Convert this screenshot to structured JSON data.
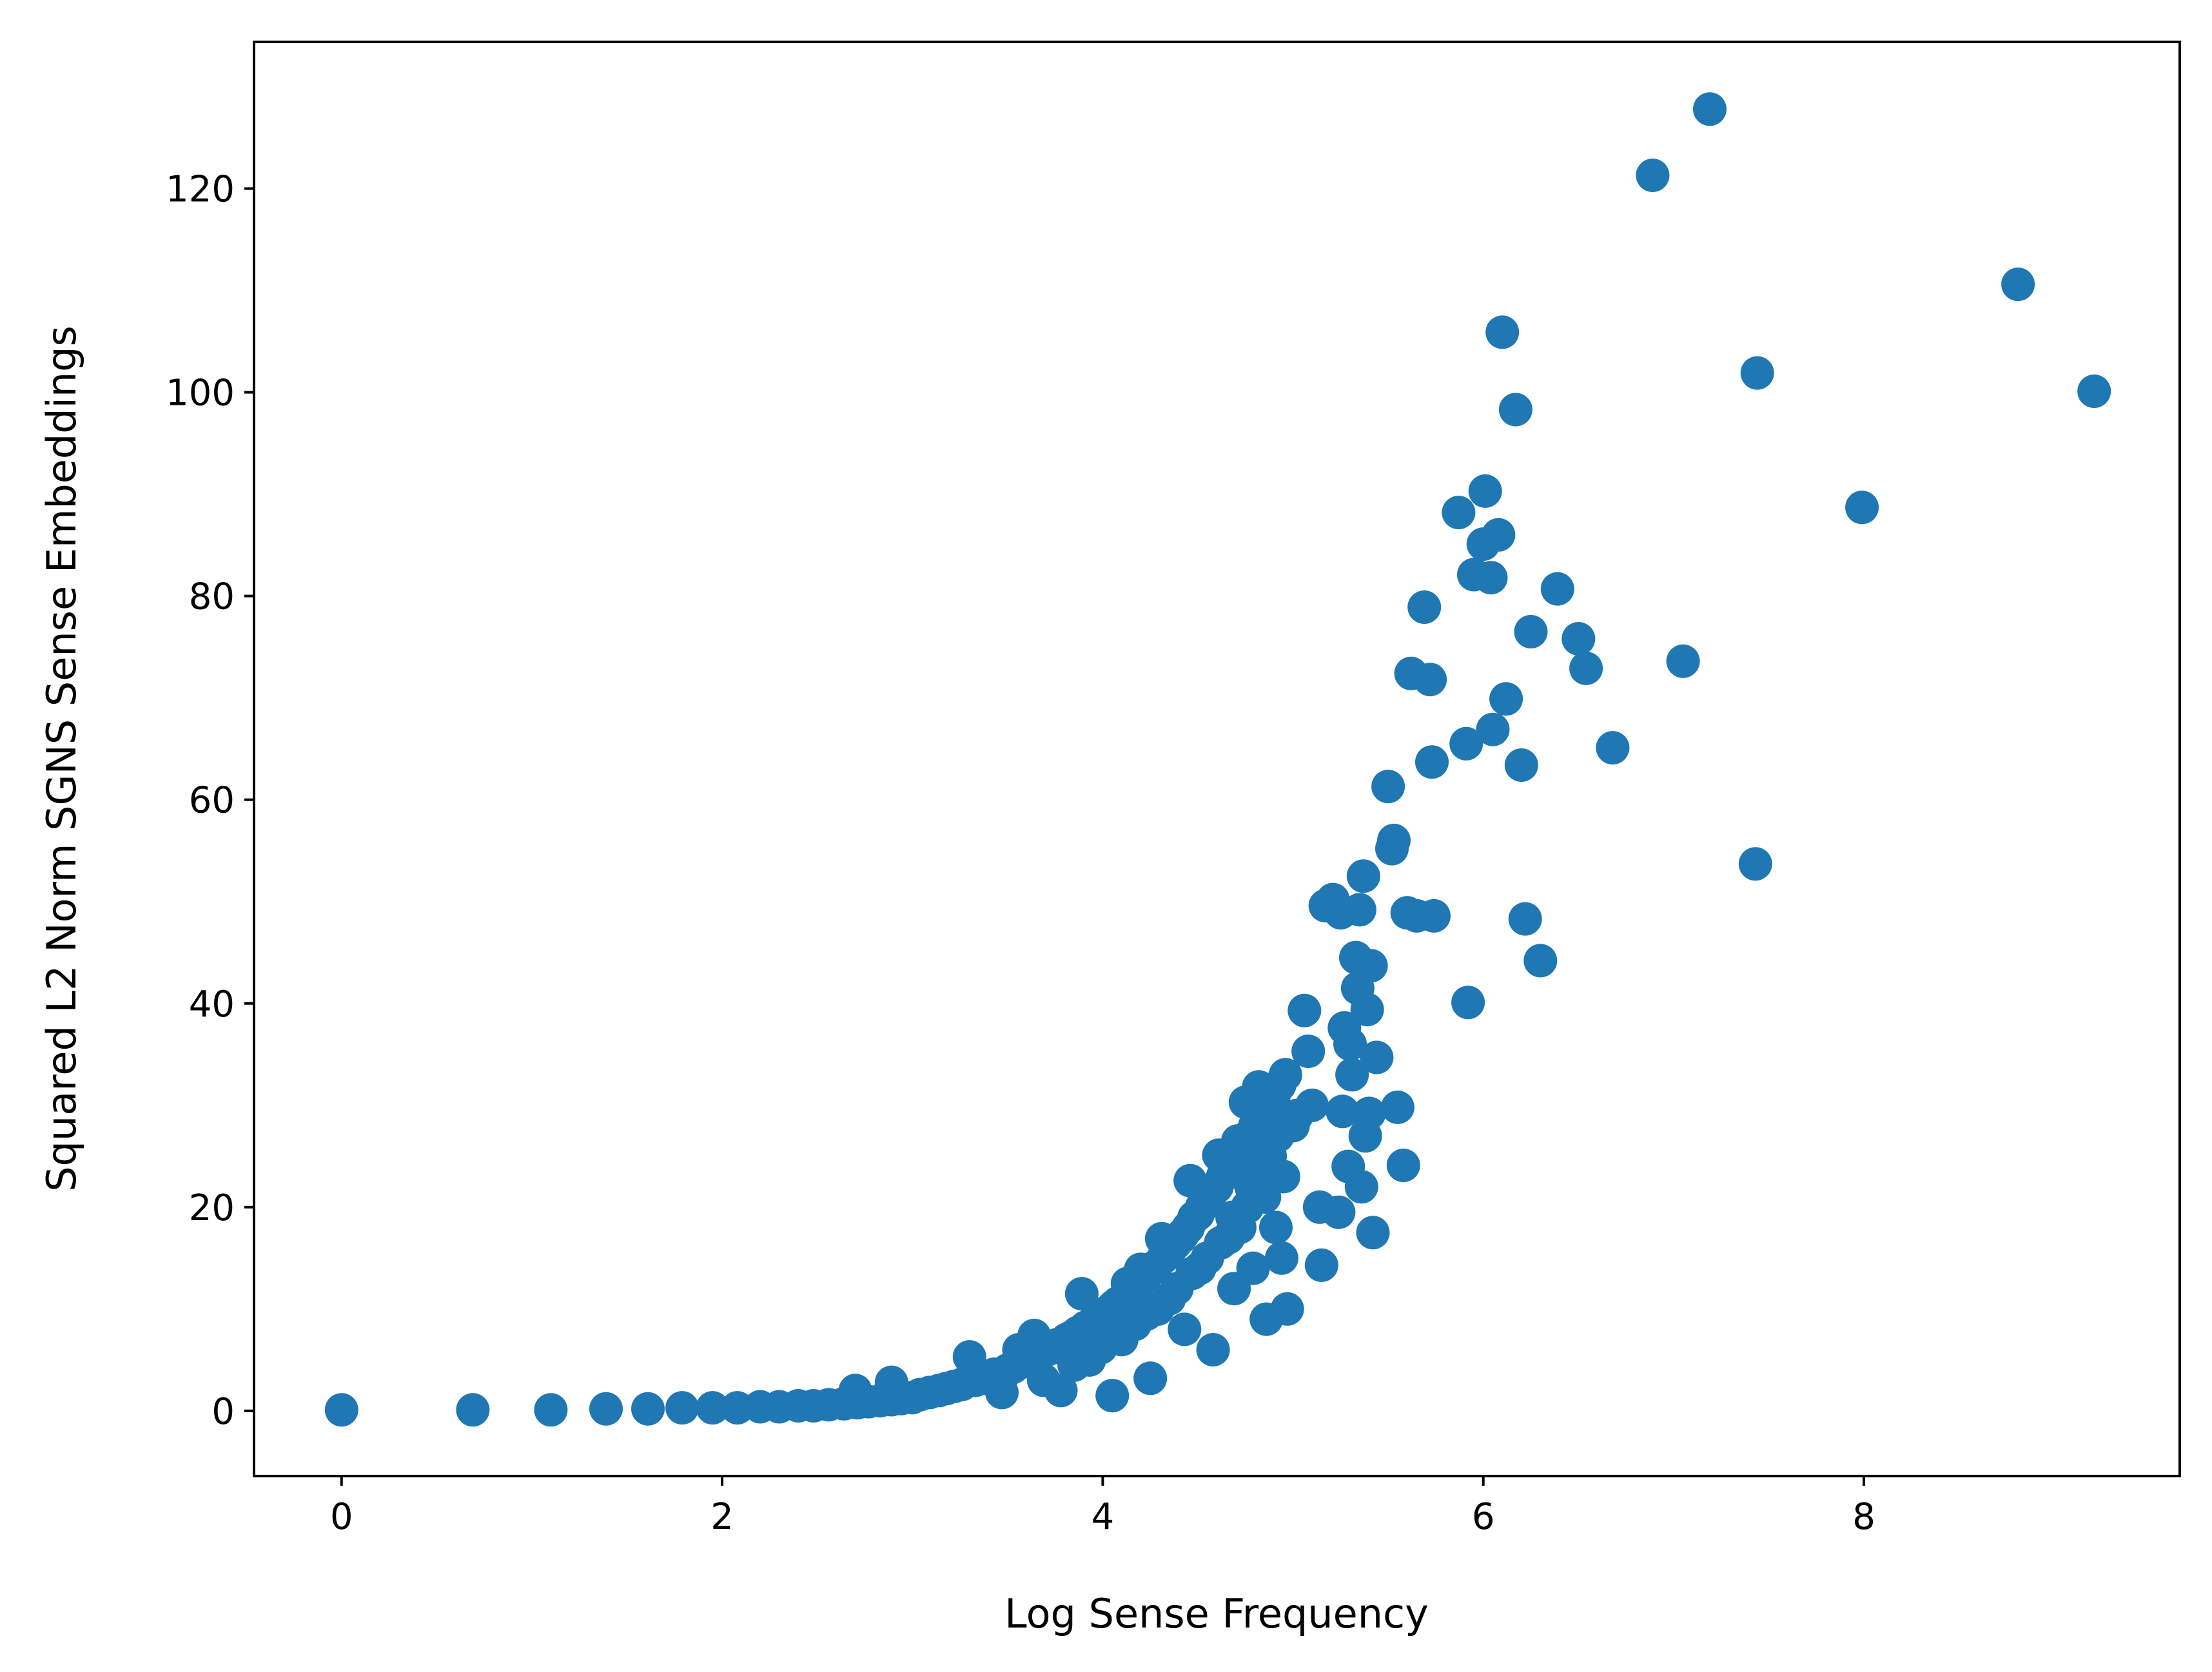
{
  "chart_data": {
    "type": "scatter",
    "title": "",
    "xlabel": "Log Sense Frequency",
    "ylabel": "Squared L2 Norm SGNS Sense Embeddings",
    "xlim": [
      -0.46,
      9.66
    ],
    "ylim": [
      -6.4,
      134.4
    ],
    "x_ticks": [
      0,
      2,
      4,
      6,
      8
    ],
    "y_ticks": [
      0,
      20,
      40,
      60,
      80,
      100,
      120
    ],
    "grid": false,
    "legend": "none",
    "marker_color": "#1f77b4",
    "series": [
      {
        "points": [
          [
            0.0,
            0.1
          ],
          [
            0.69,
            0.1
          ],
          [
            1.1,
            0.1
          ],
          [
            1.39,
            0.2
          ],
          [
            1.61,
            0.2
          ],
          [
            1.79,
            0.3
          ],
          [
            1.95,
            0.3
          ],
          [
            2.08,
            0.3
          ],
          [
            2.2,
            0.4
          ],
          [
            2.3,
            0.4
          ],
          [
            2.4,
            0.5
          ],
          [
            2.48,
            0.5
          ],
          [
            2.56,
            0.6
          ],
          [
            2.64,
            0.7
          ],
          [
            2.71,
            0.8
          ],
          [
            2.77,
            0.9
          ],
          [
            2.83,
            1.0
          ],
          [
            2.89,
            1.1
          ],
          [
            2.94,
            1.2
          ],
          [
            3.0,
            1.3
          ],
          [
            2.7,
            2.0
          ],
          [
            2.89,
            2.8
          ],
          [
            3.04,
            1.6
          ],
          [
            3.09,
            1.8
          ],
          [
            3.14,
            2.0
          ],
          [
            3.18,
            2.2
          ],
          [
            3.22,
            2.4
          ],
          [
            3.26,
            2.6
          ],
          [
            3.3,
            5.3
          ],
          [
            3.33,
            3.0
          ],
          [
            3.37,
            3.2
          ],
          [
            3.4,
            3.4
          ],
          [
            3.43,
            3.6
          ],
          [
            3.47,
            1.8
          ],
          [
            3.5,
            4.0
          ],
          [
            3.53,
            4.3
          ],
          [
            3.56,
            6.0
          ],
          [
            3.58,
            4.8
          ],
          [
            3.61,
            5.0
          ],
          [
            3.64,
            7.4
          ],
          [
            3.66,
            5.5
          ],
          [
            3.69,
            3.0
          ],
          [
            3.71,
            6.0
          ],
          [
            3.74,
            6.2
          ],
          [
            3.76,
            6.5
          ],
          [
            3.78,
            2.0
          ],
          [
            3.81,
            7.0
          ],
          [
            3.83,
            7.2
          ],
          [
            3.85,
            4.5
          ],
          [
            3.87,
            7.7
          ],
          [
            3.89,
            11.5
          ],
          [
            3.91,
            8.2
          ],
          [
            3.93,
            5.0
          ],
          [
            3.95,
            8.7
          ],
          [
            3.97,
            9.0
          ],
          [
            3.99,
            6.2
          ],
          [
            4.01,
            9.5
          ],
          [
            4.03,
            9.8
          ],
          [
            4.05,
            1.5
          ],
          [
            4.06,
            10.3
          ],
          [
            4.08,
            10.6
          ],
          [
            4.1,
            7.0
          ],
          [
            4.12,
            11.2
          ],
          [
            4.13,
            12.5
          ],
          [
            4.15,
            11.8
          ],
          [
            4.17,
            8.5
          ],
          [
            4.18,
            12.4
          ],
          [
            4.2,
            13.9
          ],
          [
            4.22,
            13.0
          ],
          [
            4.23,
            9.5
          ],
          [
            4.25,
            3.2
          ],
          [
            4.26,
            13.9
          ],
          [
            4.28,
            14.2
          ],
          [
            4.29,
            10.0
          ],
          [
            4.31,
            16.9
          ],
          [
            4.32,
            15.1
          ],
          [
            4.34,
            15.4
          ],
          [
            4.35,
            11.0
          ],
          [
            4.36,
            16.0
          ],
          [
            4.38,
            16.4
          ],
          [
            4.39,
            12.0
          ],
          [
            4.41,
            17.0
          ],
          [
            4.42,
            17.3
          ],
          [
            4.43,
            8.0
          ],
          [
            4.45,
            18.0
          ],
          [
            4.46,
            22.6
          ],
          [
            4.47,
            13.5
          ],
          [
            4.48,
            19.0
          ],
          [
            4.5,
            19.3
          ],
          [
            4.51,
            14.0
          ],
          [
            4.52,
            20.0
          ],
          [
            4.53,
            21.5
          ],
          [
            4.55,
            15.0
          ],
          [
            4.56,
            21.0
          ],
          [
            4.57,
            21.4
          ],
          [
            4.58,
            6.0
          ],
          [
            4.6,
            22.0
          ],
          [
            4.61,
            25.1
          ],
          [
            4.62,
            16.5
          ],
          [
            4.63,
            23.0
          ],
          [
            4.64,
            23.4
          ],
          [
            4.66,
            17.0
          ],
          [
            4.67,
            24.0
          ],
          [
            4.68,
            19.0
          ],
          [
            4.69,
            12.0
          ],
          [
            4.7,
            25.0
          ],
          [
            4.71,
            26.5
          ],
          [
            4.72,
            18.0
          ],
          [
            4.74,
            26.0
          ],
          [
            4.75,
            30.3
          ],
          [
            4.76,
            20.0
          ],
          [
            4.77,
            27.0
          ],
          [
            4.78,
            22.0
          ],
          [
            4.79,
            14.0
          ],
          [
            4.8,
            28.0
          ],
          [
            4.81,
            24.0
          ],
          [
            4.82,
            31.8
          ],
          [
            4.84,
            29.0
          ],
          [
            4.85,
            21.0
          ],
          [
            4.86,
            9.0
          ],
          [
            4.87,
            30.0
          ],
          [
            4.88,
            25.0
          ],
          [
            4.89,
            23.0
          ],
          [
            4.9,
            31.0
          ],
          [
            4.91,
            18.0
          ],
          [
            4.92,
            27.0
          ],
          [
            4.93,
            32.0
          ],
          [
            4.94,
            15.0
          ],
          [
            4.95,
            23.0
          ],
          [
            4.96,
            33.0
          ],
          [
            4.97,
            10.0
          ],
          [
            5.0,
            28.0
          ],
          [
            5.02,
            29.0
          ],
          [
            5.06,
            39.3
          ],
          [
            5.08,
            35.3
          ],
          [
            5.1,
            30.0
          ],
          [
            5.14,
            20.0
          ],
          [
            5.15,
            14.3
          ],
          [
            5.17,
            49.6
          ],
          [
            5.21,
            50.2
          ],
          [
            5.24,
            19.5
          ],
          [
            5.25,
            48.9
          ],
          [
            5.26,
            29.4
          ],
          [
            5.27,
            37.6
          ],
          [
            5.29,
            24.0
          ],
          [
            5.3,
            36.0
          ],
          [
            5.31,
            33.0
          ],
          [
            5.33,
            44.5
          ],
          [
            5.34,
            41.5
          ],
          [
            5.35,
            49.2
          ],
          [
            5.36,
            22.0
          ],
          [
            5.37,
            52.5
          ],
          [
            5.38,
            27.0
          ],
          [
            5.39,
            39.4
          ],
          [
            5.4,
            29.2
          ],
          [
            5.41,
            43.7
          ],
          [
            5.42,
            17.5
          ],
          [
            5.44,
            34.7
          ],
          [
            5.5,
            61.3
          ],
          [
            5.52,
            55.2
          ],
          [
            5.53,
            56.0
          ],
          [
            5.55,
            29.8
          ],
          [
            5.58,
            24.1
          ],
          [
            5.6,
            48.9
          ],
          [
            5.62,
            72.4
          ],
          [
            5.65,
            48.6
          ],
          [
            5.69,
            78.9
          ],
          [
            5.72,
            71.8
          ],
          [
            5.73,
            63.7
          ],
          [
            5.74,
            48.6
          ],
          [
            5.87,
            88.2
          ],
          [
            5.91,
            65.5
          ],
          [
            5.92,
            40.1
          ],
          [
            5.95,
            82.1
          ],
          [
            6.0,
            85.1
          ],
          [
            6.01,
            90.3
          ],
          [
            6.04,
            81.8
          ],
          [
            6.05,
            66.9
          ],
          [
            6.08,
            86.0
          ],
          [
            6.1,
            105.9
          ],
          [
            6.12,
            69.9
          ],
          [
            6.17,
            98.3
          ],
          [
            6.2,
            63.4
          ],
          [
            6.22,
            48.3
          ],
          [
            6.25,
            76.5
          ],
          [
            6.3,
            44.2
          ],
          [
            6.39,
            80.7
          ],
          [
            6.5,
            75.8
          ],
          [
            6.54,
            72.9
          ],
          [
            6.68,
            65.1
          ],
          [
            6.89,
            121.3
          ],
          [
            7.05,
            73.6
          ],
          [
            7.19,
            127.8
          ],
          [
            7.43,
            53.7
          ],
          [
            7.44,
            101.9
          ],
          [
            7.99,
            88.7
          ],
          [
            8.81,
            110.6
          ],
          [
            9.21,
            100.1
          ]
        ]
      }
    ]
  }
}
